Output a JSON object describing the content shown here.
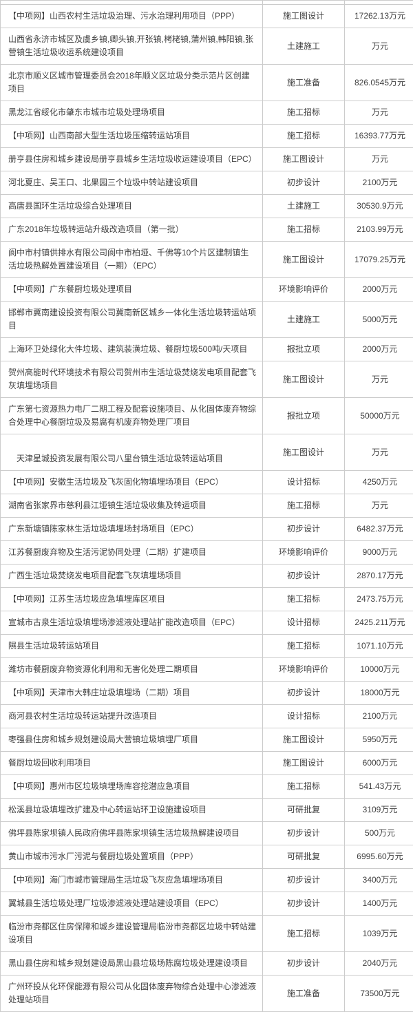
{
  "table": {
    "rows": [
      {
        "name": "【中项网】山西农村生活垃圾治理、污水治理利用项目（PPP）",
        "stage": "施工图设计",
        "amount": "17262.13万元"
      },
      {
        "name": "山西省永济市城区及虞乡镇,卿头镇,开张镇,栲栳镇,蒲州镇,韩阳镇,张营镇生活垃圾收运系统建设项目",
        "stage": "土建施工",
        "amount": "万元"
      },
      {
        "name": "北京市顺义区城市管理委员会2018年顺义区垃圾分类示范片区创建项目",
        "stage": "施工准备",
        "amount": "826.0545万元"
      },
      {
        "name": "黑龙江省绥化市肇东市城市垃圾处理场项目",
        "stage": "施工招标",
        "amount": "万元"
      },
      {
        "name": "【中项网】山西南部大型生活垃圾压缩转运站项目",
        "stage": "施工招标",
        "amount": "16393.77万元"
      },
      {
        "name": "册亨县住房和城乡建设局册亨县城乡生活垃圾收运建设项目（EPC）",
        "stage": "施工图设计",
        "amount": "万元"
      },
      {
        "name": "河北夏庄、吴王口、北果园三个垃圾中转站建设项目",
        "stage": "初步设计",
        "amount": "2100万元"
      },
      {
        "name": "高唐县国环生活垃圾综合处理项目",
        "stage": "土建施工",
        "amount": "30530.9万元"
      },
      {
        "name": "广东2018年垃圾转运站升级改造项目（第一批）",
        "stage": "施工招标",
        "amount": "2103.99万元"
      },
      {
        "name": "阆中市村镇供排水有限公司阆中市柏垭、千佛等10个片区建制镇生活垃圾热解处置建设项目（一期）（EPC）",
        "stage": "施工图设计",
        "amount": "17079.25万元"
      },
      {
        "name": "【中项网】广东餐厨垃圾处理项目",
        "stage": "环境影响评价",
        "amount": "2000万元"
      },
      {
        "name": "邯郸市冀南建设投资有限公司冀南新区城乡一体化生活垃圾转运站项目",
        "stage": "土建施工",
        "amount": "5000万元"
      },
      {
        "name": "上海环卫处绿化大件垃圾、建筑装潢垃圾、餐厨垃圾500吨/天项目",
        "stage": "报批立项",
        "amount": "2000万元"
      },
      {
        "name": "贺州高能时代环境技术有限公司贺州市生活垃圾焚烧发电项目配套飞灰填埋场项目",
        "stage": "施工图设计",
        "amount": "万元"
      },
      {
        "name": "广东第七资源热力电厂二期工程及配套设施项目、从化固体废弃物综合处理中心餐厨垃圾及易腐有机废弃物处理厂项目",
        "stage": "报批立项",
        "amount": "50000万元"
      },
      {
        "name": "\n　天津星城投资发展有限公司八里台镇生活垃圾转运站项目",
        "stage": "施工图设计",
        "amount": "万元"
      },
      {
        "name": "【中项网】安徽生活垃圾及飞灰固化物填埋场项目（EPC）",
        "stage": "设计招标",
        "amount": "4250万元"
      },
      {
        "name": "湖南省张家界市慈利县江垭镇生活垃圾收集及转运项目",
        "stage": "施工招标",
        "amount": "万元"
      },
      {
        "name": "广东新塘镇陈家林生活垃圾填埋场封场项目（EPC）",
        "stage": "初步设计",
        "amount": "6482.37万元"
      },
      {
        "name": "江苏餐厨废弃物及生活污泥协同处理（二期）扩建项目",
        "stage": "环境影响评价",
        "amount": "9000万元"
      },
      {
        "name": "广西生活垃圾焚烧发电项目配套飞灰填埋场项目",
        "stage": "初步设计",
        "amount": "2870.17万元"
      },
      {
        "name": "【中项网】江苏生活垃圾应急填埋库区项目",
        "stage": "施工招标",
        "amount": "2473.75万元"
      },
      {
        "name": "宣城市古泉生活垃圾填埋场渗滤液处理站扩能改造项目（EPC）",
        "stage": "设计招标",
        "amount": "2425.211万元"
      },
      {
        "name": "隰县生活垃圾转运站项目",
        "stage": "施工招标",
        "amount": "1071.10万元"
      },
      {
        "name": "潍坊市餐厨废弃物资源化利用和无害化处理二期项目",
        "stage": "环境影响评价",
        "amount": "10000万元"
      },
      {
        "name": "【中项网】天津市大韩庄垃圾填埋场（二期）项目",
        "stage": "初步设计",
        "amount": "18000万元"
      },
      {
        "name": "商河县农村生活垃圾转运站提升改造项目",
        "stage": "设计招标",
        "amount": "2100万元"
      },
      {
        "name": "枣强县住房和城乡规划建设局大营镇垃圾填埋厂项目",
        "stage": "施工图设计",
        "amount": "5950万元"
      },
      {
        "name": "餐厨垃圾回收利用项目",
        "stage": "施工图设计",
        "amount": "6000万元"
      },
      {
        "name": "【中项网】惠州市区垃圾填埋场库容挖潜应急项目",
        "stage": "施工招标",
        "amount": "541.43万元"
      },
      {
        "name": "松溪县垃圾填埋改扩建及中心转运站环卫设施建设项目",
        "stage": "可研批复",
        "amount": "3109万元"
      },
      {
        "name": "佛坪县陈家坝镇人民政府佛坪县陈家坝镇生活垃圾热解建设项目",
        "stage": "初步设计",
        "amount": "500万元"
      },
      {
        "name": "黄山市城市污水厂污泥与餐厨垃圾处置项目（PPP）",
        "stage": "可研批复",
        "amount": "6995.60万元"
      },
      {
        "name": "【中项网】海门市城市管理局生活垃圾飞灰应急填埋场项目",
        "stage": "初步设计",
        "amount": "3400万元"
      },
      {
        "name": "翼城县生活垃圾处理厂垃圾渗滤液处理站建设项目（EPC）",
        "stage": "初步设计",
        "amount": "1400万元"
      },
      {
        "name": "临汾市尧都区住房保障和城乡建设管理局临汾市尧都区垃圾中转站建设项目",
        "stage": "施工招标",
        "amount": "1039万元"
      },
      {
        "name": "黑山县住房和城乡规划建设局黑山县垃圾场陈腐垃圾处理建设项目",
        "stage": "初步设计",
        "amount": "2040万元"
      },
      {
        "name": "广州环投从化环保能源有限公司从化固体废弃物综合处理中心渗滤液处理站项目",
        "stage": "施工准备",
        "amount": "73500万元"
      }
    ]
  }
}
